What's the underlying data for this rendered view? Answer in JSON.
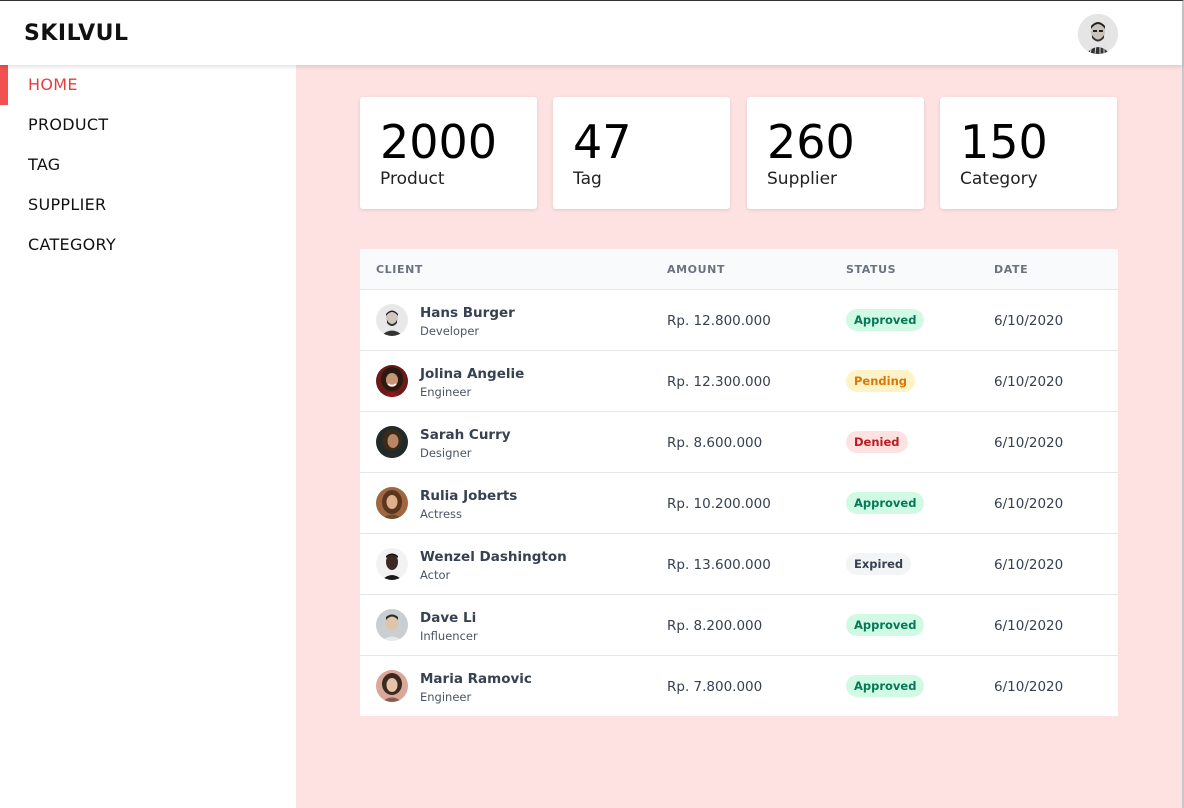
{
  "header": {
    "brand": "SKILVUL"
  },
  "sidebar": {
    "items": [
      {
        "label": "HOME",
        "active": true
      },
      {
        "label": "PRODUCT",
        "active": false
      },
      {
        "label": "TAG",
        "active": false
      },
      {
        "label": "SUPPLIER",
        "active": false
      },
      {
        "label": "CATEGORY",
        "active": false
      }
    ]
  },
  "stats": [
    {
      "value": "2000",
      "label": "Product"
    },
    {
      "value": "47",
      "label": "Tag"
    },
    {
      "value": "260",
      "label": "Supplier"
    },
    {
      "value": "150",
      "label": "Category"
    }
  ],
  "table": {
    "columns": [
      "CLIENT",
      "AMOUNT",
      "STATUS",
      "DATE"
    ],
    "rows": [
      {
        "name": "Hans Burger",
        "role": "Developer",
        "amount": "Rp. 12.800.000",
        "status": "Approved",
        "date": "6/10/2020"
      },
      {
        "name": "Jolina Angelie",
        "role": "Engineer",
        "amount": "Rp. 12.300.000",
        "status": "Pending",
        "date": "6/10/2020"
      },
      {
        "name": "Sarah Curry",
        "role": "Designer",
        "amount": "Rp. 8.600.000",
        "status": "Denied",
        "date": "6/10/2020"
      },
      {
        "name": "Rulia Joberts",
        "role": "Actress",
        "amount": "Rp. 10.200.000",
        "status": "Approved",
        "date": "6/10/2020"
      },
      {
        "name": "Wenzel Dashington",
        "role": "Actor",
        "amount": "Rp. 13.600.000",
        "status": "Expired",
        "date": "6/10/2020"
      },
      {
        "name": "Dave Li",
        "role": "Influencer",
        "amount": "Rp. 8.200.000",
        "status": "Approved",
        "date": "6/10/2020"
      },
      {
        "name": "Maria Ramovic",
        "role": "Engineer",
        "amount": "Rp. 7.800.000",
        "status": "Approved",
        "date": "6/10/2020"
      }
    ]
  },
  "colors": {
    "accent": "#f05252",
    "main_bg": "#fee2e2",
    "approved": "#047857",
    "pending": "#d97706",
    "denied": "#b91c1c"
  }
}
